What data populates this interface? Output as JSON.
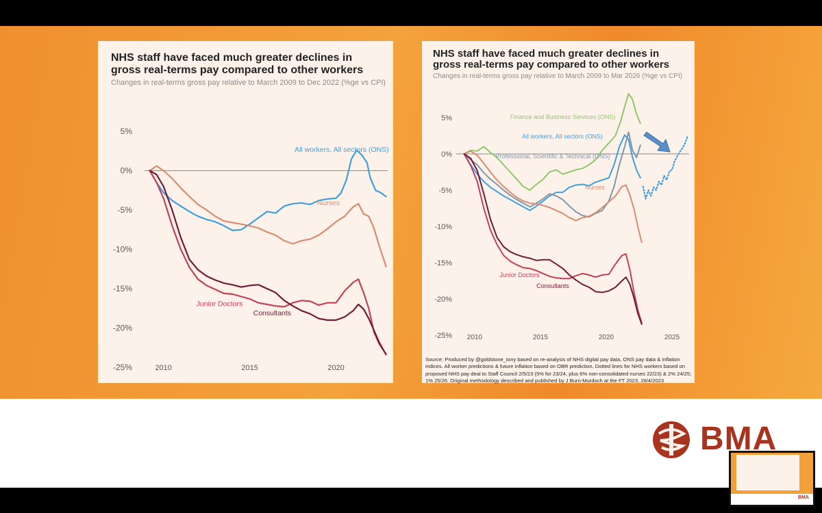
{
  "colors": {
    "all_workers": "#3d9fe0",
    "nurses": "#d98a70",
    "junior_doctors": "#c24055",
    "consultants": "#701a35",
    "finance": "#8ec86a",
    "professional": "#7f96a9",
    "zero_line": "#888888",
    "brand": "#a8331f"
  },
  "chart_data": [
    {
      "type": "line",
      "title": "NHS staff have faced much greater declines in gross real-terms pay compared to other workers",
      "subtitle": "Changes in real-terms gross pay relative to March 2009 to Dec 2022 (%ge vs CPI)",
      "xlim": [
        2008.9,
        2023.0
      ],
      "ylim": [
        -25,
        5
      ],
      "y_ticks": [
        5,
        0,
        -5,
        -10,
        -15,
        -20,
        -25
      ],
      "y_tick_labels": [
        "5%",
        "0%",
        "-5%",
        "-10%",
        "-15%",
        "-20%",
        "-25%"
      ],
      "x_ticks": [
        2010,
        2015,
        2020
      ],
      "x_tick_labels": [
        "2010",
        "2015",
        "2020"
      ],
      "series": [
        {
          "name": "All workers, All sectors (ONS)",
          "color_key": "all_workers",
          "x": [
            2009.2,
            2009.6,
            2010.0,
            2010.5,
            2011.0,
            2011.5,
            2012.0,
            2012.5,
            2013.0,
            2013.5,
            2014.0,
            2014.5,
            2015.0,
            2015.5,
            2016.0,
            2016.5,
            2017.0,
            2017.5,
            2018.0,
            2018.5,
            2019.0,
            2019.5,
            2020.0,
            2020.3,
            2020.6,
            2020.9,
            2021.2,
            2021.5,
            2021.8,
            2022.0,
            2022.3,
            2022.6,
            2022.9
          ],
          "y": [
            0.0,
            -1.5,
            -2.8,
            -3.8,
            -4.5,
            -5.2,
            -5.8,
            -6.2,
            -6.5,
            -7.0,
            -7.6,
            -7.5,
            -6.8,
            -6.0,
            -5.2,
            -5.4,
            -4.5,
            -4.2,
            -4.1,
            -4.3,
            -3.8,
            -3.6,
            -3.5,
            -2.8,
            -1.2,
            1.5,
            2.6,
            2.0,
            1.0,
            -1.0,
            -2.5,
            -2.8,
            -3.3
          ]
        },
        {
          "name": "Nurses",
          "color_key": "nurses",
          "x": [
            2009.2,
            2009.6,
            2010.0,
            2010.5,
            2011.0,
            2011.5,
            2012.0,
            2012.5,
            2013.0,
            2013.5,
            2014.0,
            2014.5,
            2015.0,
            2015.5,
            2016.0,
            2016.5,
            2017.0,
            2017.5,
            2018.0,
            2018.5,
            2019.0,
            2019.5,
            2020.0,
            2020.5,
            2021.0,
            2021.3,
            2021.6,
            2021.9,
            2022.2,
            2022.5,
            2022.8,
            2022.9
          ],
          "y": [
            0.0,
            0.6,
            0.0,
            -1.0,
            -2.2,
            -3.3,
            -4.3,
            -5.0,
            -5.8,
            -6.4,
            -6.6,
            -6.8,
            -7.0,
            -7.3,
            -7.8,
            -8.2,
            -8.9,
            -9.3,
            -8.9,
            -8.7,
            -8.2,
            -7.4,
            -6.5,
            -5.8,
            -4.6,
            -4.2,
            -5.5,
            -5.8,
            -7.3,
            -9.5,
            -11.5,
            -12.2
          ]
        },
        {
          "name": "Junior Doctors",
          "color_key": "junior_doctors",
          "x": [
            2009.2,
            2009.6,
            2010.0,
            2010.5,
            2011.0,
            2011.5,
            2012.0,
            2012.5,
            2013.0,
            2013.5,
            2014.0,
            2014.5,
            2015.0,
            2015.5,
            2016.0,
            2016.5,
            2017.0,
            2017.5,
            2018.0,
            2018.5,
            2019.0,
            2019.5,
            2020.0,
            2020.5,
            2021.0,
            2021.3,
            2021.6,
            2021.9,
            2022.2,
            2022.5,
            2022.8,
            2022.9
          ],
          "y": [
            0.0,
            -1.5,
            -3.5,
            -7.0,
            -10.0,
            -12.3,
            -13.8,
            -14.6,
            -15.1,
            -15.6,
            -15.7,
            -16.0,
            -16.3,
            -16.8,
            -17.0,
            -17.2,
            -17.3,
            -16.8,
            -16.5,
            -16.6,
            -17.1,
            -16.8,
            -16.8,
            -15.3,
            -14.2,
            -13.8,
            -15.5,
            -17.5,
            -20.5,
            -22.0,
            -23.0,
            -23.4
          ]
        },
        {
          "name": "Consultants",
          "color_key": "consultants",
          "x": [
            2009.2,
            2009.6,
            2010.0,
            2010.5,
            2011.0,
            2011.5,
            2012.0,
            2012.5,
            2013.0,
            2013.5,
            2014.0,
            2014.5,
            2015.0,
            2015.5,
            2016.0,
            2016.5,
            2017.0,
            2017.5,
            2018.0,
            2018.5,
            2019.0,
            2019.5,
            2020.0,
            2020.5,
            2021.0,
            2021.3,
            2021.6,
            2021.9,
            2022.2,
            2022.5,
            2022.8,
            2022.9
          ],
          "y": [
            0.0,
            -0.5,
            -2.0,
            -5.0,
            -8.5,
            -11.3,
            -12.6,
            -13.4,
            -13.9,
            -14.3,
            -14.5,
            -14.8,
            -14.6,
            -14.5,
            -15.0,
            -15.5,
            -16.5,
            -17.2,
            -17.8,
            -18.2,
            -18.8,
            -19.0,
            -19.0,
            -18.6,
            -17.8,
            -17.0,
            -17.6,
            -18.8,
            -20.3,
            -21.8,
            -23.0,
            -23.3
          ]
        }
      ],
      "annotations": [
        {
          "text": "All workers, All sectors (ONS)",
          "x": 2017.6,
          "y": 2.4,
          "color_key": "all_workers"
        },
        {
          "text": "Nurses",
          "x": 2018.9,
          "y": -4.4,
          "color_key": "nurses"
        },
        {
          "text": "Junior Doctors",
          "x": 2011.9,
          "y": -17.2,
          "color_key": "junior_doctors"
        },
        {
          "text": "Consultants",
          "x": 2015.2,
          "y": -18.4,
          "color_key": "consultants"
        }
      ]
    },
    {
      "type": "line",
      "title": "NHS staff have faced much greater declines in gross real-terms pay compared to other workers",
      "subtitle": "Changes in real-terms gross pay relative to March 2009 to Mar 2026 (%ge vs CPI)",
      "xlim": [
        2008.6,
        2026.3
      ],
      "ylim": [
        -25,
        5
      ],
      "y_ticks": [
        5,
        0,
        -5,
        -10,
        -15,
        -20,
        -25
      ],
      "y_tick_labels": [
        "5%",
        "0%",
        "-5%",
        "-10%",
        "-15%",
        "-20%",
        "-25%"
      ],
      "x_ticks": [
        2010,
        2015,
        2020,
        2025
      ],
      "x_tick_labels": [
        "2010",
        "2015",
        "2020",
        "2025"
      ],
      "series": [
        {
          "name": "Finance and Business Services (ONS)",
          "color_key": "finance",
          "x": [
            2009.2,
            2009.7,
            2010.2,
            2010.7,
            2011.2,
            2011.7,
            2012.2,
            2012.7,
            2013.2,
            2013.7,
            2014.2,
            2014.7,
            2015.2,
            2015.7,
            2016.2,
            2016.7,
            2017.2,
            2017.7,
            2018.2,
            2018.7,
            2019.2,
            2019.7,
            2020.2,
            2020.7,
            2021.1,
            2021.4,
            2021.7,
            2022.0,
            2022.3,
            2022.6
          ],
          "y": [
            0.0,
            0.5,
            0.4,
            1.0,
            0.2,
            -0.5,
            -1.5,
            -2.5,
            -3.5,
            -4.5,
            -5.0,
            -4.2,
            -3.5,
            -2.5,
            -2.2,
            -2.8,
            -2.5,
            -2.2,
            -2.0,
            -1.5,
            -0.8,
            0.5,
            1.5,
            2.5,
            4.5,
            6.5,
            8.3,
            7.5,
            5.5,
            4.2
          ]
        },
        {
          "name": "All workers, All sectors (ONS)",
          "color_key": "all_workers",
          "x": [
            2009.2,
            2009.7,
            2010.2,
            2010.7,
            2011.2,
            2011.7,
            2012.2,
            2012.7,
            2013.2,
            2013.7,
            2014.2,
            2014.7,
            2015.2,
            2015.7,
            2016.2,
            2016.7,
            2017.2,
            2017.7,
            2018.2,
            2018.7,
            2019.2,
            2019.7,
            2020.2,
            2020.6,
            2021.0,
            2021.4,
            2021.7,
            2022.0,
            2022.3,
            2022.6
          ],
          "y": [
            0.0,
            -1.5,
            -2.8,
            -3.8,
            -4.6,
            -5.2,
            -5.8,
            -6.3,
            -6.8,
            -7.3,
            -7.8,
            -7.2,
            -6.5,
            -5.8,
            -5.3,
            -5.3,
            -4.6,
            -4.3,
            -4.2,
            -4.4,
            -3.9,
            -3.6,
            -3.3,
            -1.5,
            1.0,
            2.6,
            2.0,
            -0.5,
            -2.2,
            -3.3
          ]
        },
        {
          "name": "Professional, Scientific & Technical (ONS)",
          "color_key": "professional",
          "x": [
            2009.2,
            2009.7,
            2010.2,
            2010.7,
            2011.2,
            2011.7,
            2012.2,
            2012.7,
            2013.2,
            2013.7,
            2014.2,
            2014.7,
            2015.2,
            2015.7,
            2016.2,
            2016.7,
            2017.2,
            2017.7,
            2018.2,
            2018.7,
            2019.2,
            2019.7,
            2020.2,
            2020.6,
            2021.0,
            2021.4,
            2021.7,
            2022.0,
            2022.3,
            2022.6
          ],
          "y": [
            0.0,
            -0.8,
            -1.5,
            -2.6,
            -3.5,
            -4.2,
            -5.0,
            -5.7,
            -6.3,
            -6.8,
            -7.3,
            -6.8,
            -6.2,
            -5.5,
            -5.8,
            -6.3,
            -7.2,
            -8.0,
            -8.5,
            -8.7,
            -8.2,
            -7.8,
            -6.5,
            -4.5,
            -1.5,
            1.0,
            3.0,
            0.5,
            -0.5,
            1.2
          ]
        },
        {
          "name": "Nurses",
          "color_key": "nurses",
          "x": [
            2009.2,
            2009.7,
            2010.2,
            2010.7,
            2011.2,
            2011.7,
            2012.2,
            2012.7,
            2013.2,
            2013.7,
            2014.2,
            2014.7,
            2015.2,
            2015.7,
            2016.2,
            2016.7,
            2017.2,
            2017.7,
            2018.2,
            2018.7,
            2019.2,
            2019.7,
            2020.2,
            2020.7,
            2021.2,
            2021.5,
            2021.8,
            2022.1,
            2022.4,
            2022.7
          ],
          "y": [
            0.0,
            0.4,
            -0.2,
            -1.3,
            -2.5,
            -3.6,
            -4.5,
            -5.3,
            -6.0,
            -6.5,
            -6.8,
            -6.9,
            -7.1,
            -7.4,
            -7.8,
            -8.2,
            -8.8,
            -9.2,
            -8.8,
            -8.6,
            -8.1,
            -7.4,
            -6.6,
            -5.8,
            -4.5,
            -4.3,
            -5.7,
            -7.5,
            -10.0,
            -12.2
          ]
        },
        {
          "name": "Junior Doctors",
          "color_key": "junior_doctors",
          "x": [
            2009.2,
            2009.7,
            2010.2,
            2010.7,
            2011.2,
            2011.7,
            2012.2,
            2012.7,
            2013.2,
            2013.7,
            2014.2,
            2014.7,
            2015.2,
            2015.7,
            2016.2,
            2016.7,
            2017.2,
            2017.7,
            2018.2,
            2018.7,
            2019.2,
            2019.7,
            2020.2,
            2020.7,
            2021.2,
            2021.5,
            2021.8,
            2022.1,
            2022.4,
            2022.7
          ],
          "y": [
            0.0,
            -1.6,
            -3.8,
            -7.5,
            -10.5,
            -12.5,
            -14.0,
            -14.8,
            -15.3,
            -15.7,
            -15.8,
            -16.1,
            -16.5,
            -16.9,
            -17.1,
            -17.2,
            -17.2,
            -16.8,
            -16.5,
            -16.7,
            -17.0,
            -16.7,
            -16.6,
            -15.2,
            -14.0,
            -13.8,
            -16.0,
            -19.0,
            -21.5,
            -23.3
          ]
        },
        {
          "name": "Consultants",
          "color_key": "consultants",
          "x": [
            2009.2,
            2009.7,
            2010.2,
            2010.7,
            2011.2,
            2011.7,
            2012.2,
            2012.7,
            2013.2,
            2013.7,
            2014.2,
            2014.7,
            2015.2,
            2015.7,
            2016.2,
            2016.7,
            2017.2,
            2017.7,
            2018.2,
            2018.7,
            2019.2,
            2019.7,
            2020.2,
            2020.7,
            2021.2,
            2021.5,
            2021.8,
            2022.1,
            2022.4,
            2022.7
          ],
          "y": [
            0.0,
            -0.6,
            -2.3,
            -5.5,
            -9.0,
            -11.5,
            -12.8,
            -13.5,
            -13.9,
            -14.2,
            -14.4,
            -14.7,
            -14.6,
            -14.6,
            -15.2,
            -15.8,
            -16.7,
            -17.4,
            -18.0,
            -18.4,
            -19.0,
            -19.1,
            -18.9,
            -18.4,
            -17.5,
            -17.0,
            -18.0,
            -19.8,
            -22.0,
            -23.5
          ]
        },
        {
          "name": "All workers projection",
          "color_key": "all_workers",
          "dotted": true,
          "x": [
            2022.8,
            2023.0,
            2023.2,
            2023.4,
            2023.6,
            2023.8,
            2024.0,
            2024.2,
            2024.4,
            2024.6,
            2024.8,
            2025.0,
            2025.2,
            2025.4,
            2025.6,
            2025.8,
            2026.0,
            2026.2
          ],
          "y": [
            -4.5,
            -6.2,
            -5.0,
            -5.8,
            -4.6,
            -5.0,
            -3.8,
            -4.3,
            -3.0,
            -3.6,
            -2.4,
            -2.2,
            -1.0,
            -0.3,
            0.3,
            0.8,
            1.5,
            2.5
          ]
        }
      ],
      "annotations": [
        {
          "text": "Finance and Business Services (ONS)",
          "x": 2012.7,
          "y": 4.8,
          "color_key": "finance"
        },
        {
          "text": "All workers, All sectors (ONS)",
          "x": 2013.6,
          "y": 2.1,
          "color_key": "all_workers"
        },
        {
          "text": "Professional, Scientific & Technical (ONS)",
          "x": 2011.6,
          "y": -0.6,
          "color_key": "professional"
        },
        {
          "text": "Nurses",
          "x": 2018.4,
          "y": -4.9,
          "color_key": "nurses"
        },
        {
          "text": "Junior Doctors",
          "x": 2011.9,
          "y": -17.0,
          "color_key": "junior_doctors"
        },
        {
          "text": "Consultants",
          "x": 2014.7,
          "y": -18.5,
          "color_key": "consultants"
        }
      ],
      "source": "Source: Produced by @goldstone_tony based on re-analysis of NHS digital pay data, ONS pay data & inflation indices. All worker predictions & future inflation based on OBR prediction. Dotted lines for NHS workers based on proposed NHS pay deal to Staff Council 2/5/23 (5% for 23/24, plus 6% non-consolidated nurses 22/23) &  2% 24/25; 1% 25/26. Original methodology described and published by J Burn-Murdoch at the FT 2023, 28/4/2023"
    }
  ],
  "logo": {
    "text": "BMA",
    "icon": "bma-caduceus-icon"
  }
}
